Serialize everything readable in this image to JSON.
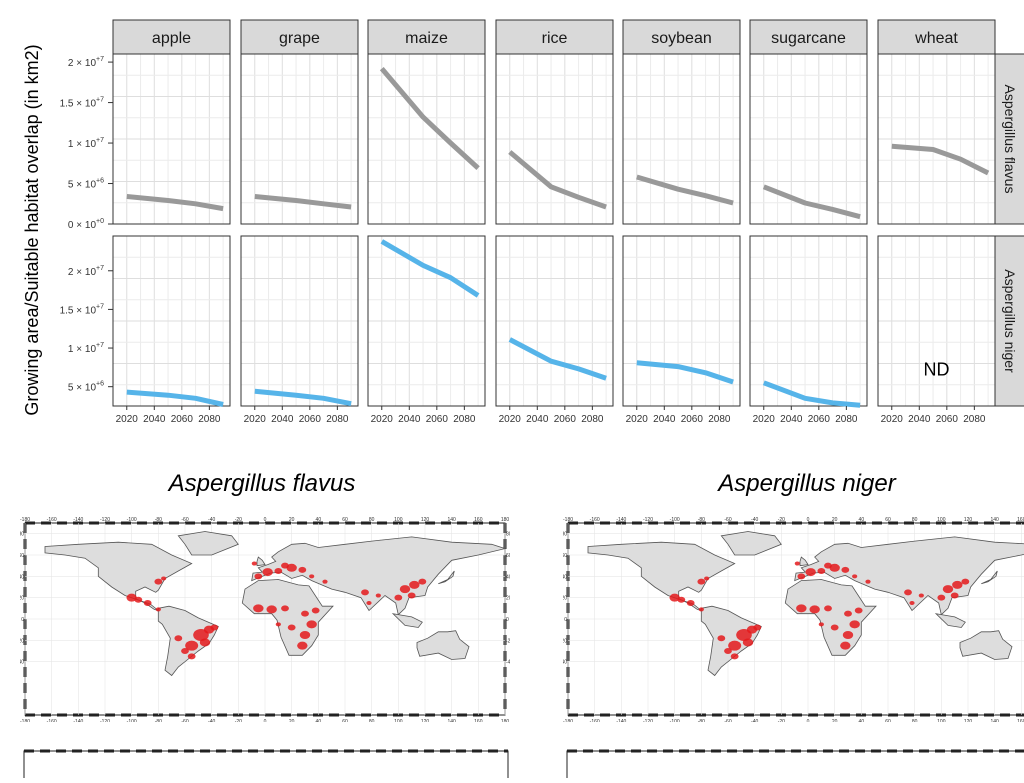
{
  "chart_data": {
    "type": "line",
    "ylabel": "Growing area/Suitable habitat overlap (in km2)",
    "crops": [
      "apple",
      "grape",
      "maize",
      "rice",
      "soybean",
      "sugarcane",
      "wheat"
    ],
    "x_ticks": [
      "2020",
      "2040",
      "2060",
      "2080"
    ],
    "x_values": [
      2020,
      2050,
      2070,
      2090
    ],
    "rows": [
      {
        "name": "Aspergillus flavus",
        "color": "#999999",
        "ylim": [
          0,
          21000000
        ],
        "y_ticks": [
          {
            "value": 0,
            "label": "0 × 10+0"
          },
          {
            "value": 5000000,
            "label": "5 × 10+6"
          },
          {
            "value": 10000000,
            "label": "1 × 10+7"
          },
          {
            "value": 15000000,
            "label": "1.5 × 10+7"
          },
          {
            "value": 20000000,
            "label": "2 × 10+7"
          }
        ],
        "series": [
          {
            "crop": "apple",
            "values": [
              3400000,
              2900000,
              2500000,
              1900000
            ]
          },
          {
            "crop": "grape",
            "values": [
              3400000,
              2900000,
              2500000,
              2100000
            ]
          },
          {
            "crop": "maize",
            "values": [
              19200000,
              13200000,
              10000000,
              6900000
            ]
          },
          {
            "crop": "rice",
            "values": [
              8900000,
              4600000,
              3300000,
              2100000
            ]
          },
          {
            "crop": "soybean",
            "values": [
              5800000,
              4300000,
              3500000,
              2600000
            ]
          },
          {
            "crop": "sugarcane",
            "values": [
              4600000,
              2600000,
              1800000,
              900000
            ]
          },
          {
            "crop": "wheat",
            "values": [
              9600000,
              9200000,
              8000000,
              6300000
            ]
          }
        ]
      },
      {
        "name": "Aspergillus niger",
        "color": "#56b4e9",
        "ylim": [
          2500000,
          24500000
        ],
        "y_ticks": [
          {
            "value": 5000000,
            "label": "5 × 10+6"
          },
          {
            "value": 10000000,
            "label": "1 × 10+7"
          },
          {
            "value": 15000000,
            "label": "1.5 × 10+7"
          },
          {
            "value": 20000000,
            "label": "2 × 10+7"
          }
        ],
        "series": [
          {
            "crop": "apple",
            "values": [
              4300000,
              3900000,
              3500000,
              2700000
            ]
          },
          {
            "crop": "grape",
            "values": [
              4400000,
              3900000,
              3500000,
              2800000
            ]
          },
          {
            "crop": "maize",
            "values": [
              23800000,
              20700000,
              19100000,
              16800000
            ]
          },
          {
            "crop": "rice",
            "values": [
              11100000,
              8300000,
              7300000,
              6100000
            ]
          },
          {
            "crop": "soybean",
            "values": [
              8100000,
              7600000,
              6800000,
              5600000
            ]
          },
          {
            "crop": "sugarcane",
            "values": [
              5500000,
              3500000,
              2900000,
              2600000
            ]
          },
          {
            "crop": "wheat",
            "values": []
          }
        ],
        "annotation": {
          "crop": "wheat",
          "text": "ND"
        }
      }
    ]
  },
  "maps": {
    "left_title": "Aspergillus flavus",
    "right_title": "Aspergillus niger",
    "lon_ticks": [
      "-180",
      "-160",
      "-140",
      "-120",
      "-100",
      "-80",
      "-60",
      "-40",
      "-20",
      "0",
      "20",
      "40",
      "60",
      "80",
      "100",
      "120",
      "140",
      "160",
      "180"
    ],
    "lat_ticks": [
      "80",
      "60",
      "40",
      "20",
      "0",
      "-20",
      "-40"
    ],
    "land_color": "#dddddd",
    "hotspot_color": "#e41a1c"
  }
}
